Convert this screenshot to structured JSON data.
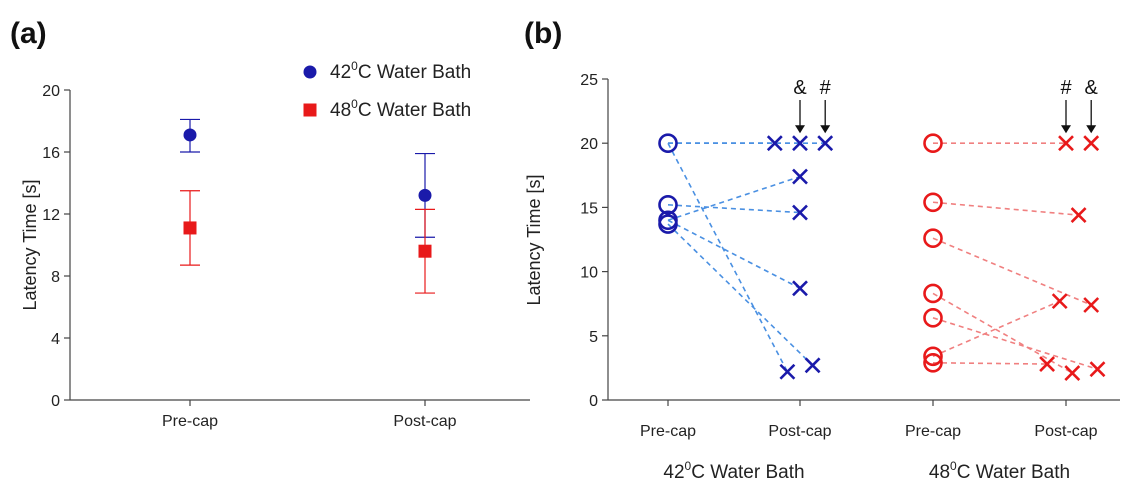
{
  "chart_data": [
    {
      "panel_label": "(a)",
      "type": "scatter",
      "ylabel": "Latency Time [s]",
      "ylim": [
        0,
        20
      ],
      "yticks": [
        "0",
        "4",
        "8",
        "12",
        "16",
        "20"
      ],
      "categories": [
        "Pre-cap",
        "Post-cap"
      ],
      "legend_position": "top-right",
      "series": [
        {
          "name": "42",
          "name_sup": "0",
          "name_suffix": "C Water Bath",
          "color": "#1a1aaa",
          "marker": "circle",
          "values": [
            17.1,
            13.2
          ],
          "err_low": [
            16.0,
            10.5
          ],
          "err_high": [
            18.1,
            15.9
          ]
        },
        {
          "name": "48",
          "name_sup": "0",
          "name_suffix": "C Water Bath",
          "color": "#e8191a",
          "marker": "square",
          "values": [
            11.1,
            9.6
          ],
          "err_low": [
            8.7,
            6.9
          ],
          "err_high": [
            13.5,
            12.3
          ]
        }
      ]
    },
    {
      "panel_label": "(b)",
      "type": "scatter",
      "ylabel": "Latency Time [s]",
      "ylim": [
        0,
        25
      ],
      "yticks": [
        "0",
        "5",
        "10",
        "15",
        "20",
        "25"
      ],
      "categories": [
        "Pre-cap",
        "Post-cap",
        "Pre-cap",
        "Post-cap"
      ],
      "group_labels": [
        {
          "base": "42",
          "sup": "0",
          "suffix": "C Water Bath"
        },
        {
          "base": "48",
          "sup": "0",
          "suffix": "C Water Bath"
        }
      ],
      "groups": [
        {
          "color": "#1a1aaa",
          "line_color": "#4a90e2",
          "pre": [
            20.0,
            15.2,
            14.0,
            13.7
          ],
          "post": [
            {
              "x": 0.8,
              "y": 20.0
            },
            {
              "x": 1.0,
              "y": 20.0
            },
            {
              "x": 1.2,
              "y": 20.0
            },
            {
              "x": 1.0,
              "y": 17.4
            },
            {
              "x": 1.0,
              "y": 14.6
            },
            {
              "x": 1.0,
              "y": 8.7
            },
            {
              "x": 0.9,
              "y": 2.2
            },
            {
              "x": 1.1,
              "y": 2.7
            }
          ],
          "links": [
            [
              0,
              0
            ],
            [
              0,
              1
            ],
            [
              0,
              2
            ],
            [
              0,
              6
            ],
            [
              1,
              4
            ],
            [
              2,
              3
            ],
            [
              2,
              5
            ],
            [
              3,
              7
            ]
          ]
        },
        {
          "color": "#e8191a",
          "line_color": "#f08080",
          "pre": [
            20.0,
            15.4,
            12.6,
            8.3,
            6.4,
            3.4,
            2.9
          ],
          "post": [
            {
              "x": 1.0,
              "y": 20.0
            },
            {
              "x": 1.2,
              "y": 20.0
            },
            {
              "x": 1.1,
              "y": 14.4
            },
            {
              "x": 0.95,
              "y": 7.7
            },
            {
              "x": 1.2,
              "y": 7.4
            },
            {
              "x": 0.85,
              "y": 2.8
            },
            {
              "x": 1.05,
              "y": 2.1
            },
            {
              "x": 1.25,
              "y": 2.4
            }
          ],
          "links": [
            [
              0,
              0
            ],
            [
              1,
              2
            ],
            [
              2,
              4
            ],
            [
              3,
              6
            ],
            [
              4,
              7
            ],
            [
              5,
              3
            ],
            [
              6,
              5
            ]
          ]
        }
      ],
      "annotations": [
        {
          "text": "&",
          "group": 0,
          "post_index": 1
        },
        {
          "text": "#",
          "group": 0,
          "post_index": 2
        },
        {
          "text": "#",
          "group": 1,
          "post_index": 0
        },
        {
          "text": "&",
          "group": 1,
          "post_index": 1
        }
      ]
    }
  ]
}
